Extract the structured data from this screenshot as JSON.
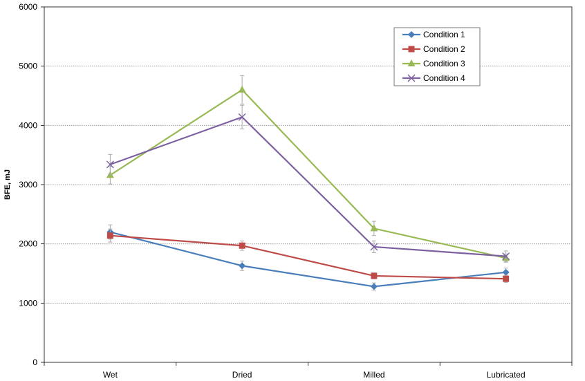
{
  "chart_data": {
    "type": "line",
    "title": "",
    "xlabel": "",
    "ylabel": "BFE, mJ",
    "categories": [
      "Wet",
      "Dried",
      "Milled",
      "Lubricated"
    ],
    "ylim": [
      0,
      6000
    ],
    "yticks": [
      "0",
      "1000",
      "2000",
      "3000",
      "4000",
      "5000",
      "6000"
    ],
    "grid": "horizontal dotted",
    "legend_position": "top-right",
    "series": [
      {
        "name": "Condition 1",
        "color": "#4a7ebb",
        "marker": "diamond",
        "values": [
          2200,
          1630,
          1280,
          1520
        ],
        "errors": [
          120,
          80,
          60,
          70
        ]
      },
      {
        "name": "Condition 2",
        "color": "#be4b48",
        "marker": "square",
        "values": [
          2140,
          1970,
          1460,
          1410
        ],
        "errors": [
          110,
          80,
          50,
          60
        ]
      },
      {
        "name": "Condition 3",
        "color": "#98b954",
        "marker": "triangle",
        "values": [
          3160,
          4600,
          2260,
          1760
        ],
        "errors": [
          150,
          240,
          120,
          70
        ]
      },
      {
        "name": "Condition 4",
        "color": "#7d60a0",
        "marker": "x",
        "values": [
          3340,
          4140,
          1950,
          1790
        ],
        "errors": [
          170,
          200,
          100,
          90
        ]
      }
    ]
  }
}
